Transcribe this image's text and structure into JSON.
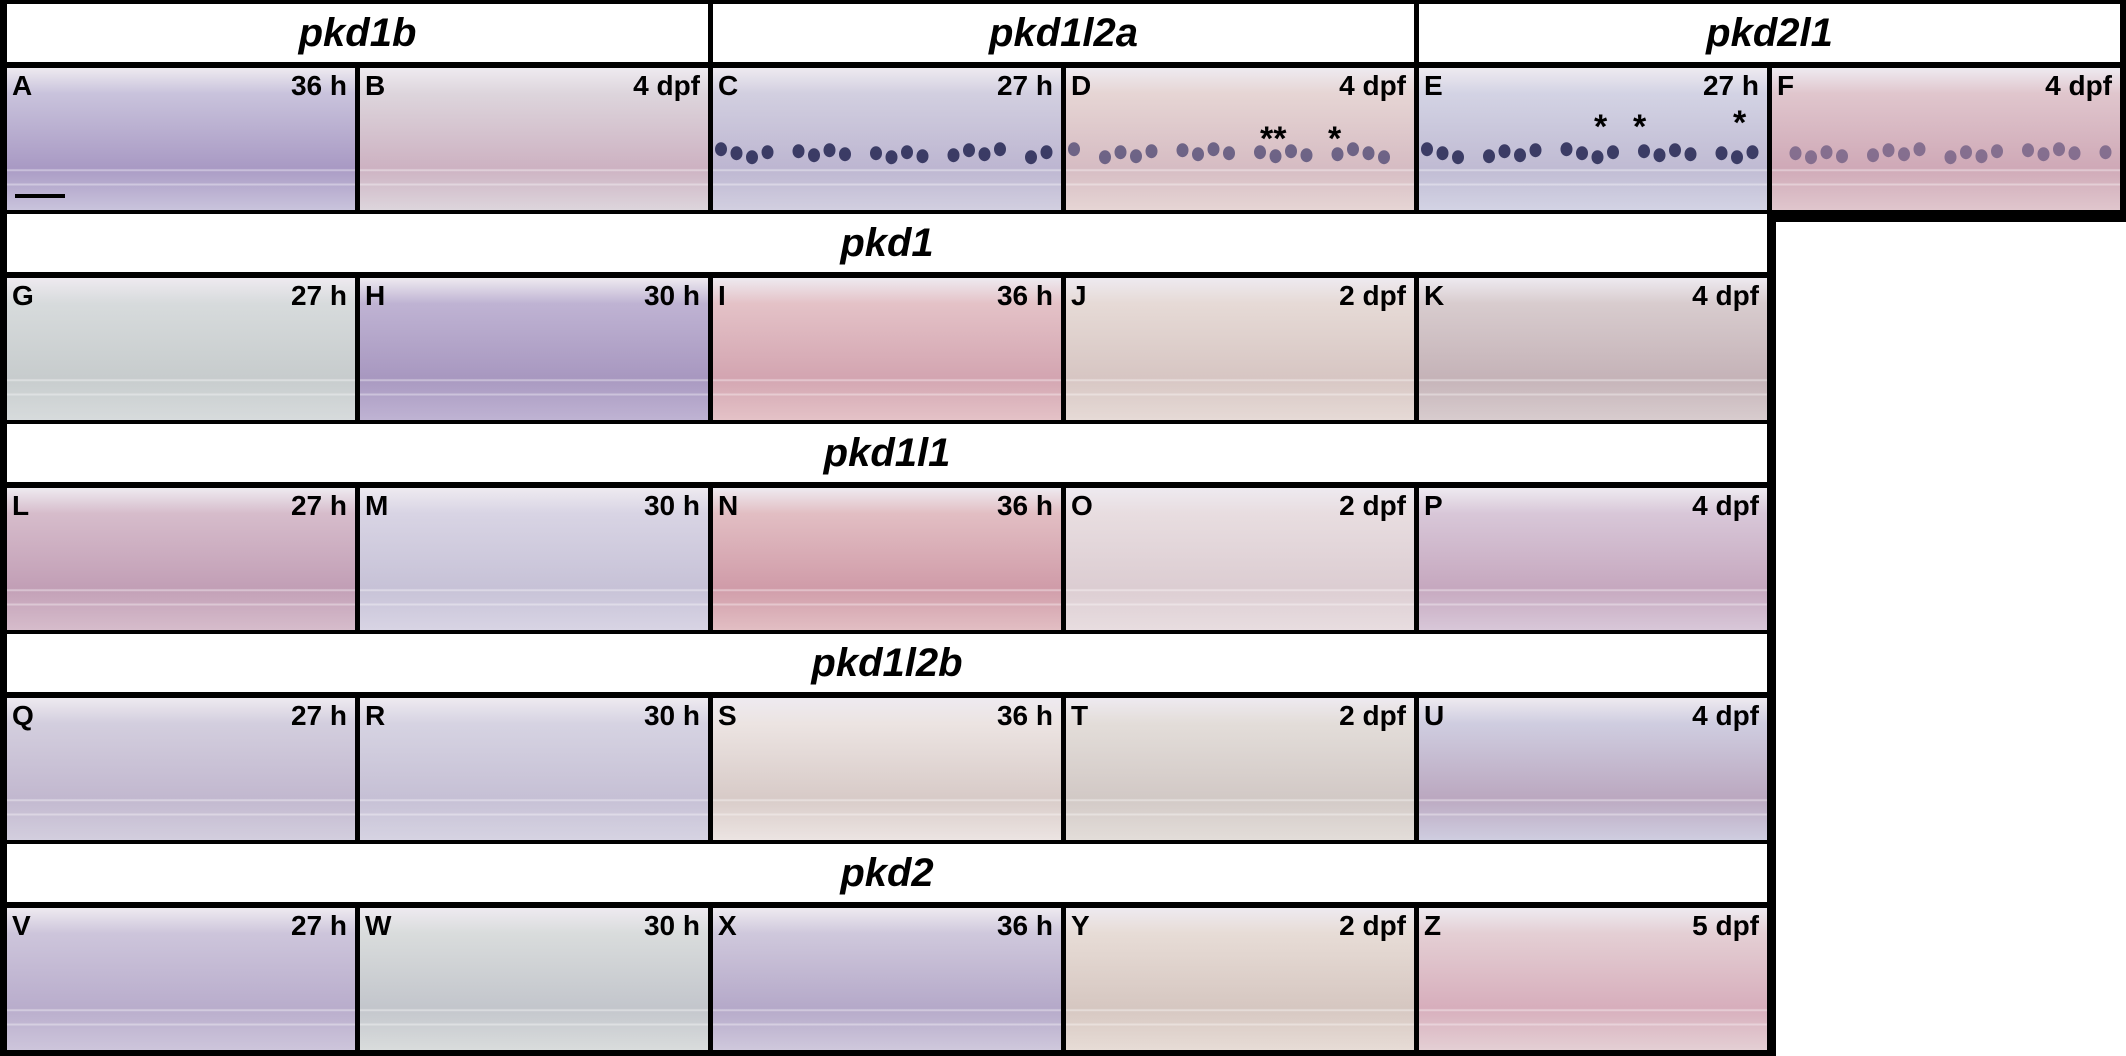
{
  "rows": [
    {
      "genes": [
        "pkd1b",
        "pkd1l2a",
        "pkd2l1"
      ],
      "panels": [
        {
          "letter": "A",
          "stage": "36 h"
        },
        {
          "letter": "B",
          "stage": "4 dpf"
        },
        {
          "letter": "C",
          "stage": "27 h"
        },
        {
          "letter": "D",
          "stage": "4 dpf",
          "marks": [
            "**",
            "*"
          ]
        },
        {
          "letter": "E",
          "stage": "27 h",
          "marks": [
            "*",
            "*",
            "*"
          ]
        },
        {
          "letter": "F",
          "stage": "4 dpf"
        }
      ]
    },
    {
      "genes": [
        "pkd1"
      ],
      "panels": [
        {
          "letter": "G",
          "stage": "27 h"
        },
        {
          "letter": "H",
          "stage": "30 h"
        },
        {
          "letter": "I",
          "stage": "36 h"
        },
        {
          "letter": "J",
          "stage": "2 dpf"
        },
        {
          "letter": "K",
          "stage": "4 dpf"
        }
      ]
    },
    {
      "genes": [
        "pkd1l1"
      ],
      "panels": [
        {
          "letter": "L",
          "stage": "27 h"
        },
        {
          "letter": "M",
          "stage": "30 h"
        },
        {
          "letter": "N",
          "stage": "36 h"
        },
        {
          "letter": "O",
          "stage": "2 dpf"
        },
        {
          "letter": "P",
          "stage": "4 dpf"
        }
      ]
    },
    {
      "genes": [
        "pkd1l2b"
      ],
      "panels": [
        {
          "letter": "Q",
          "stage": "27 h"
        },
        {
          "letter": "R",
          "stage": "30 h"
        },
        {
          "letter": "S",
          "stage": "36 h"
        },
        {
          "letter": "T",
          "stage": "2 dpf"
        },
        {
          "letter": "U",
          "stage": "4 dpf"
        }
      ]
    },
    {
      "genes": [
        "pkd2"
      ],
      "panels": [
        {
          "letter": "V",
          "stage": "27 h"
        },
        {
          "letter": "W",
          "stage": "30 h"
        },
        {
          "letter": "X",
          "stage": "36 h"
        },
        {
          "letter": "Y",
          "stage": "2 dpf"
        },
        {
          "letter": "Z",
          "stage": "5 dpf"
        }
      ]
    }
  ]
}
